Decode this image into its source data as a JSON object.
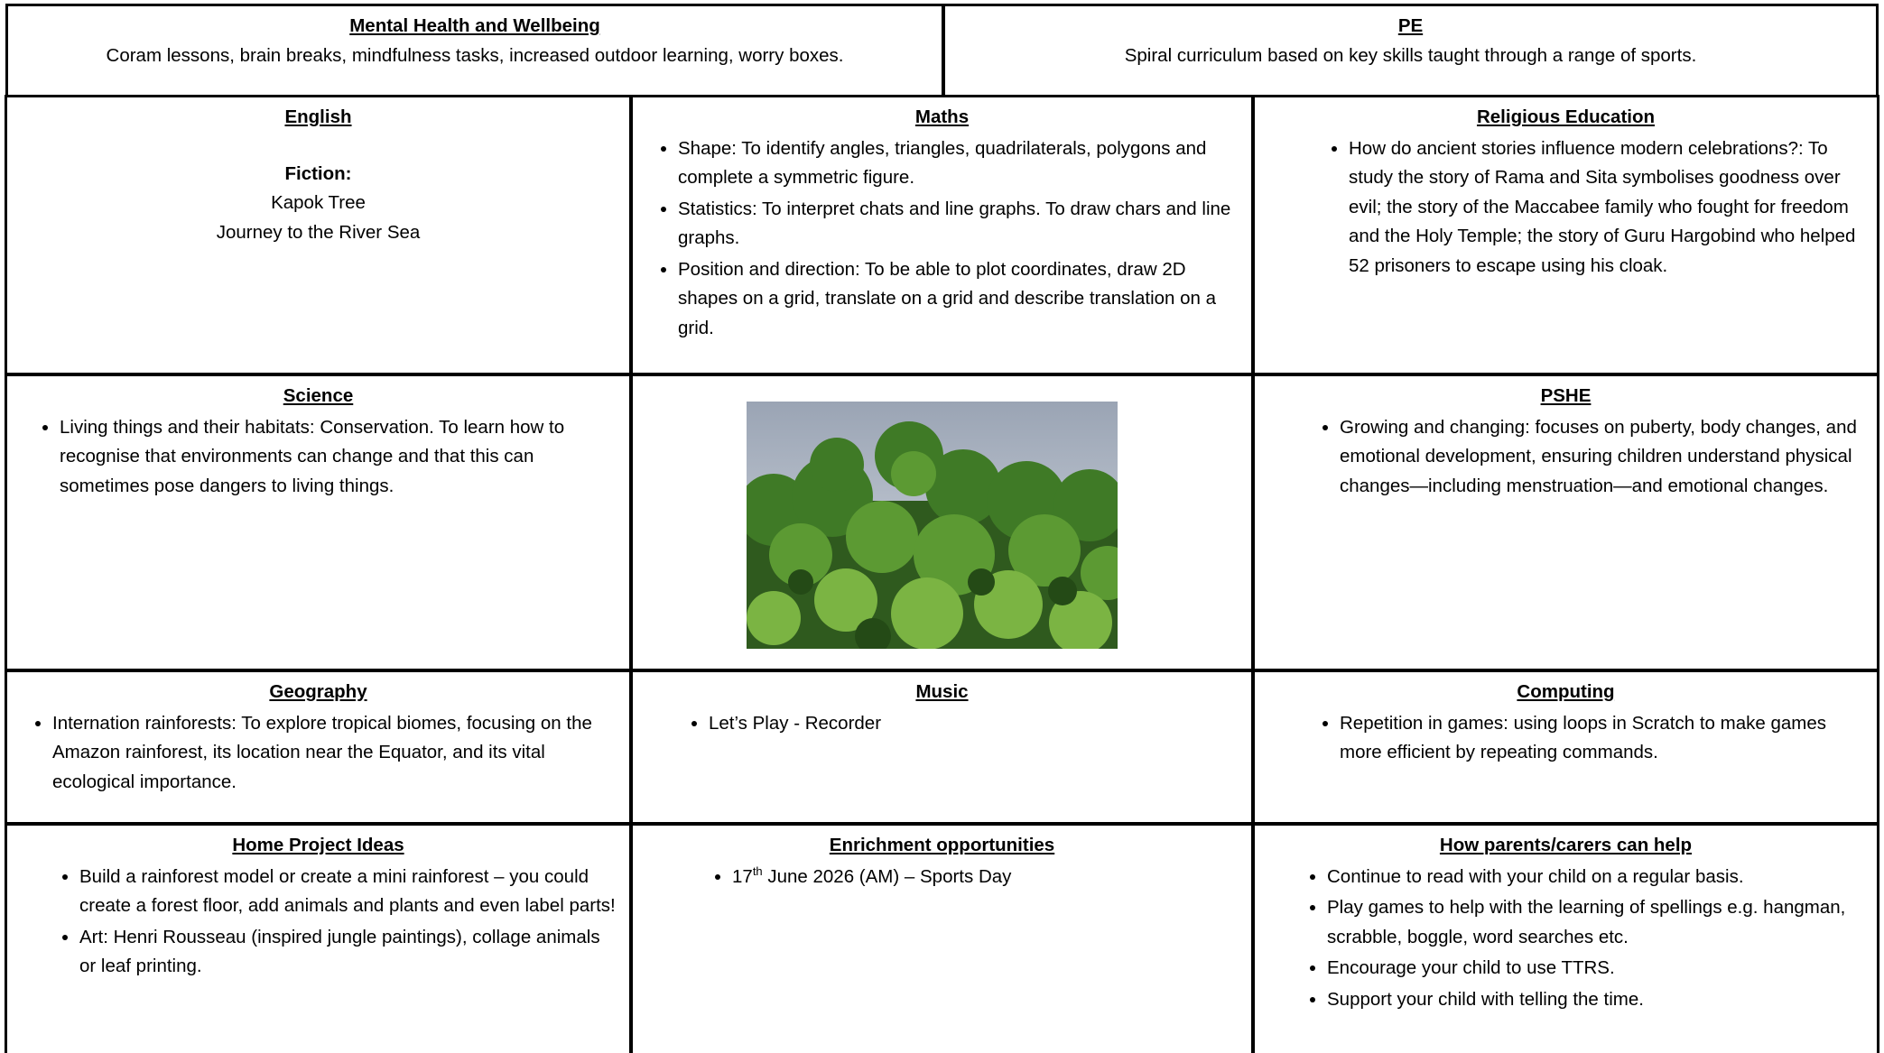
{
  "top": [
    {
      "title": "Mental Health and Wellbeing",
      "text": "Coram lessons, brain breaks, mindfulness tasks, increased outdoor learning, worry boxes."
    },
    {
      "title": "PE",
      "text": "Spiral curriculum based on key skills taught through a range of sports."
    }
  ],
  "english": {
    "title": "English",
    "subtitle": "Fiction:",
    "lines": [
      "Kapok Tree",
      "Journey to the River Sea"
    ]
  },
  "maths": {
    "title": "Maths",
    "items": [
      "Shape: To identify angles, triangles, quadrilaterals, polygons and complete a symmetric figure.",
      "Statistics: To interpret chats and line graphs. To draw chars and line graphs.",
      "Position and direction: To be able to plot coordinates, draw 2D shapes on a grid, translate on a grid and describe translation on a grid."
    ]
  },
  "re": {
    "title": "Religious Education",
    "items": [
      "How do ancient stories influence modern celebrations?: To study the story of Rama and Sita symbolises goodness over evil; the story of the Maccabee family who fought for freedom and the Holy Temple; the story of Guru Hargobind who helped 52 prisoners to escape using his cloak."
    ]
  },
  "science": {
    "title": "Science",
    "items": [
      "Living things and their habitats: Conservation. To learn how to recognise that environments can change and that this can sometimes pose dangers to living things."
    ]
  },
  "pshe": {
    "title": "PSHE",
    "items": [
      "Growing and changing: focuses on puberty, body changes, and emotional development, ensuring children understand physical changes—including menstruation—and emotional changes."
    ]
  },
  "geography": {
    "title": "Geography",
    "items": [
      "Internation rainforests: To explore tropical biomes, focusing on the Amazon rainforest, its location near the Equator, and its vital ecological importance."
    ]
  },
  "music": {
    "title": "Music",
    "items": [
      "Let’s Play - Recorder"
    ]
  },
  "computing": {
    "title": "Computing",
    "items": [
      "Repetition in games: using loops in Scratch to make games more efficient by repeating commands."
    ]
  },
  "home": {
    "title": "Home Project Ideas",
    "items": [
      "Build a rainforest model or create a mini rainforest – you could create a forest floor, add animals and plants and even label parts!",
      "Art: Henri Rousseau (inspired jungle paintings), collage animals or leaf printing."
    ]
  },
  "enrichment": {
    "title": "Enrichment opportunities",
    "event": {
      "day": "17",
      "ordinal": "th",
      "rest": " June 2026 (AM) – Sports Day"
    }
  },
  "parents": {
    "title": "How parents/carers can help",
    "items": [
      "Continue to read with your child on a regular basis.",
      "Play games to help with the learning of spellings e.g. hangman, scrabble, boggle, word searches etc.",
      "Encourage your child to use TTRS.",
      "Support your child with telling the time."
    ]
  }
}
